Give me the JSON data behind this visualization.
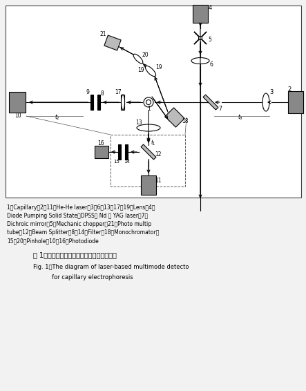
{
  "bg_color": "#f2f2f2",
  "gray": "#888888",
  "dark_gray": "#555555",
  "light_gray": "#bbbbbb",
  "black": "#000000",
  "white": "#ffffff",
  "caption_lines": [
    "1；Capillary；2，11；He-He laser；3，6，13，17，19；Lens；4；",
    "Diode Pumping Solid State（DPSS） Nd ： YAG laser；7；",
    "Dichroic mirror；5；Mechanic chopper；21；Photo multip",
    "tube；12；Beam Splitter；8，14；Filter；18；Monochromator；",
    "15，20；Pinhole；10，16；Photodiode"
  ],
  "title_cn": "图 1　毛细管电泳激光多模式信号检测仪光路",
  "title_en1": "Fig. 1　The diagram of laser-based multimode detecto",
  "title_en2": "for capillary electrophoresis"
}
